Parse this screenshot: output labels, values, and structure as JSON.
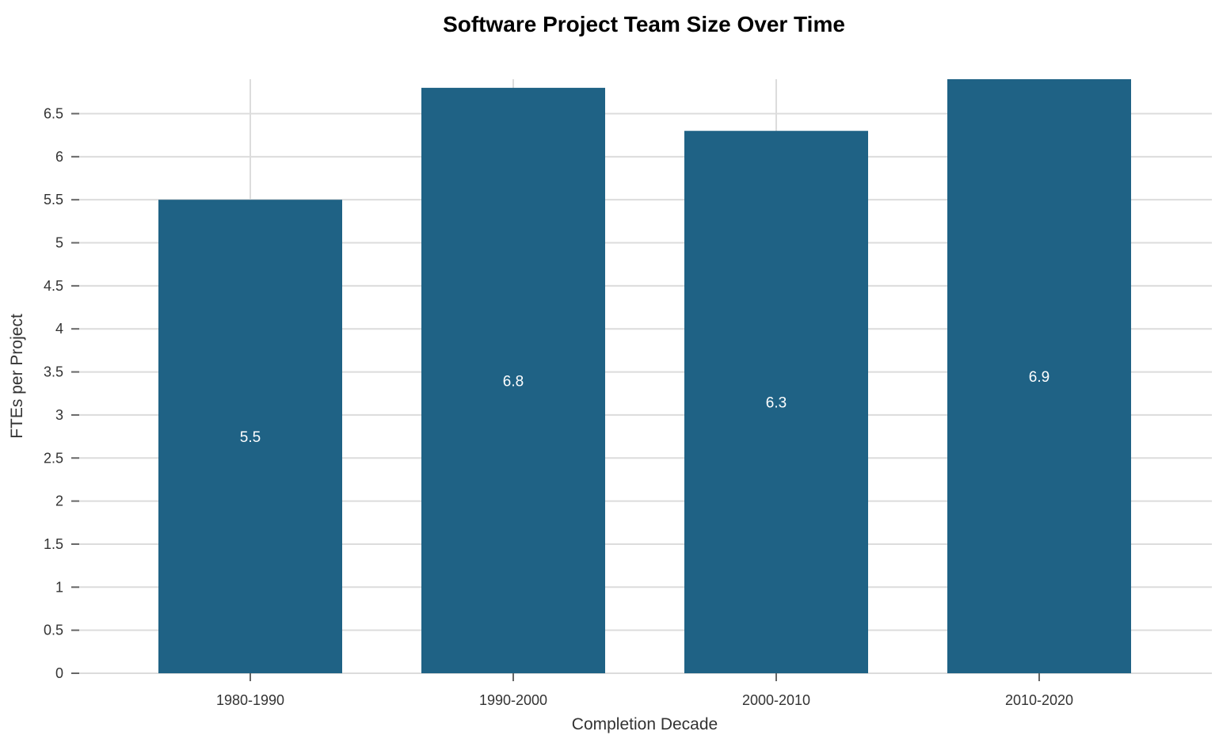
{
  "chart_data": {
    "type": "bar",
    "title": "Software Project Team Size Over Time",
    "xlabel": "Completion Decade",
    "ylabel": "FTEs per Project",
    "categories": [
      "1980-1990",
      "1990-2000",
      "2000-2010",
      "2010-2020"
    ],
    "values": [
      5.5,
      6.8,
      6.3,
      6.9
    ],
    "data_labels": [
      "5.5",
      "6.8",
      "6.3",
      "6.9"
    ],
    "ylim": [
      0,
      6.9
    ],
    "yticks": [
      0,
      0.5,
      1,
      1.5,
      2,
      2.5,
      3,
      3.5,
      4,
      4.5,
      5,
      5.5,
      6,
      6.5
    ],
    "ytick_labels": [
      "0",
      "0.5",
      "1",
      "1.5",
      "2",
      "2.5",
      "3",
      "3.5",
      "4",
      "4.5",
      "5",
      "5.5",
      "6",
      "6.5"
    ],
    "grid": true,
    "legend": "none",
    "bar_color": "#1f6285"
  }
}
